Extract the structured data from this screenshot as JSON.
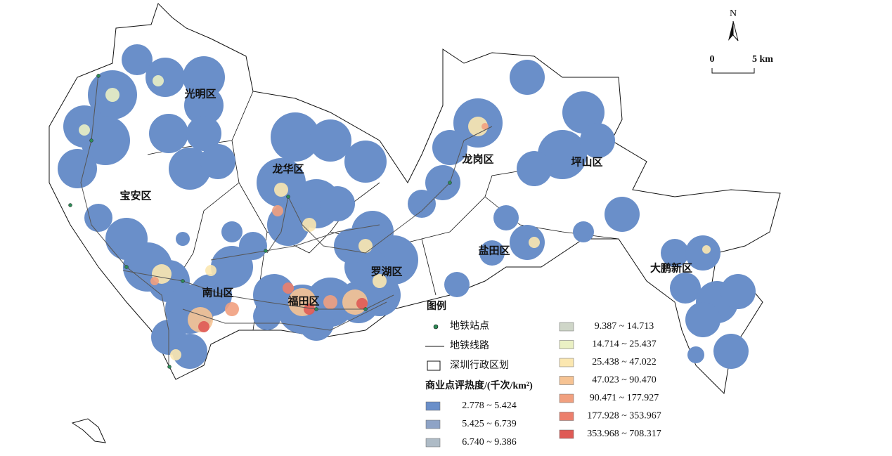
{
  "districts": [
    {
      "label": "光明区"
    },
    {
      "label": "龙华区"
    },
    {
      "label": "宝安区"
    },
    {
      "label": "龙岗区"
    },
    {
      "label": "坪山区"
    },
    {
      "label": "盐田区"
    },
    {
      "label": "罗湖区"
    },
    {
      "label": "大鹏新区"
    },
    {
      "label": "南山区"
    },
    {
      "label": "福田区"
    }
  ],
  "compass": "N",
  "scale_bar": {
    "start": "0",
    "end": "5 km"
  },
  "legend": {
    "title": "图例",
    "items": [
      {
        "label": "地铁站点"
      },
      {
        "label": "地铁线路"
      },
      {
        "label": "深圳行政区划"
      }
    ],
    "heat_title": "商业点评热度/(千次/km²)",
    "classes": [
      {
        "label": "2.778 ~ 5.424",
        "color": "#6a8fc9"
      },
      {
        "label": "5.425 ~ 6.739",
        "color": "#8ea3c6"
      },
      {
        "label": "6.740 ~ 9.386",
        "color": "#aebbc6"
      },
      {
        "label": "9.387 ~ 14.713",
        "color": "#cfd6c8"
      },
      {
        "label": "14.714 ~ 25.437",
        "color": "#eaf0c4"
      },
      {
        "label": "25.438 ~ 47.022",
        "color": "#fbe7b0"
      },
      {
        "label": "47.023 ~ 90.470",
        "color": "#f6c393"
      },
      {
        "label": "90.471 ~ 177.927",
        "color": "#f1a07f"
      },
      {
        "label": "177.928 ~ 353.967",
        "color": "#ec7f6c"
      },
      {
        "label": "353.968 ~ 708.317",
        "color": "#df5a55"
      }
    ]
  }
}
